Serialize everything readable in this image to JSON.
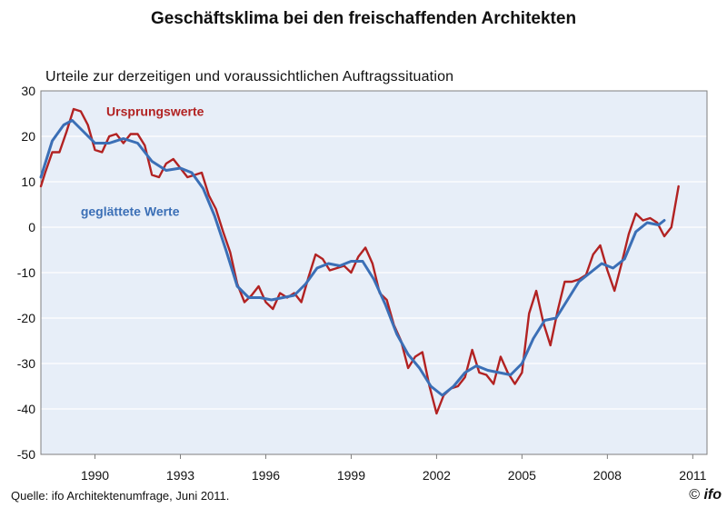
{
  "title": "Geschäftsklima bei den freischaffenden Architekten",
  "subtitle": "Urteile zur derzeitigen und voraussichtlichen Auftragssituation",
  "source": "Quelle: ifo Architektenumfrage, Juni 2011.",
  "logo": {
    "copyright": "©",
    "word": "ifo"
  },
  "colors": {
    "background": "#e7eef8",
    "raw": "#b22222",
    "smoothed": "#3b6fb6",
    "grid": "#ffffff"
  },
  "chart_data": {
    "type": "line",
    "title": "Geschäftsklima bei den freischaffenden Architekten",
    "subtitle": "Urteile zur derzeitigen und voraussichtlichen Auftragssituation",
    "xlim": [
      1988.1,
      2011.5
    ],
    "ylim": [
      -50,
      30
    ],
    "x_ticks": [
      1990,
      1993,
      1996,
      1999,
      2002,
      2005,
      2008,
      2011
    ],
    "x_tick_labels": [
      "1990",
      "1993",
      "1996",
      "1999",
      "2002",
      "2005",
      "2008",
      "2011"
    ],
    "y_ticks": [
      30,
      20,
      10,
      0,
      -10,
      -20,
      -30,
      -40,
      -50
    ],
    "y_tick_labels": [
      "30",
      "20",
      "10",
      "0",
      "-10",
      "-20",
      "-30",
      "-40",
      "-50"
    ],
    "grid": true,
    "annotations": [
      {
        "text": "Ursprungswerte",
        "series": "raw",
        "x": 1990.4,
        "y": 24.5
      },
      {
        "text": "geglättete Werte",
        "series": "smoothed",
        "x": 1989.5,
        "y": 2.5
      }
    ],
    "series": [
      {
        "name": "Ursprungswerte",
        "key": "raw",
        "points": [
          [
            1988.1,
            9
          ],
          [
            1988.25,
            12
          ],
          [
            1988.5,
            16.5
          ],
          [
            1988.75,
            16.5
          ],
          [
            1989.0,
            21
          ],
          [
            1989.25,
            26
          ],
          [
            1989.5,
            25.5
          ],
          [
            1989.75,
            22.5
          ],
          [
            1990.0,
            17
          ],
          [
            1990.25,
            16.5
          ],
          [
            1990.5,
            20
          ],
          [
            1990.75,
            20.5
          ],
          [
            1991.0,
            18.5
          ],
          [
            1991.25,
            20.5
          ],
          [
            1991.5,
            20.5
          ],
          [
            1991.75,
            18
          ],
          [
            1992.0,
            11.5
          ],
          [
            1992.25,
            11
          ],
          [
            1992.5,
            14
          ],
          [
            1992.75,
            15
          ],
          [
            1993.0,
            13
          ],
          [
            1993.25,
            11
          ],
          [
            1993.5,
            11.5
          ],
          [
            1993.75,
            12
          ],
          [
            1994.0,
            7
          ],
          [
            1994.25,
            4
          ],
          [
            1994.5,
            -1
          ],
          [
            1994.75,
            -5.5
          ],
          [
            1995.0,
            -12.5
          ],
          [
            1995.25,
            -16.5
          ],
          [
            1995.5,
            -15
          ],
          [
            1995.75,
            -13
          ],
          [
            1996.0,
            -16.5
          ],
          [
            1996.25,
            -18
          ],
          [
            1996.5,
            -14.5
          ],
          [
            1996.75,
            -15.5
          ],
          [
            1997.0,
            -14.5
          ],
          [
            1997.25,
            -16.5
          ],
          [
            1997.5,
            -11
          ],
          [
            1997.75,
            -6
          ],
          [
            1998.0,
            -7
          ],
          [
            1998.25,
            -9.5
          ],
          [
            1998.5,
            -9
          ],
          [
            1998.75,
            -8.5
          ],
          [
            1999.0,
            -10
          ],
          [
            1999.25,
            -6.5
          ],
          [
            1999.5,
            -4.5
          ],
          [
            1999.75,
            -8
          ],
          [
            2000.0,
            -14.5
          ],
          [
            2000.25,
            -16
          ],
          [
            2000.5,
            -21.5
          ],
          [
            2000.75,
            -25
          ],
          [
            2001.0,
            -31
          ],
          [
            2001.25,
            -28.5
          ],
          [
            2001.5,
            -27.5
          ],
          [
            2001.75,
            -35
          ],
          [
            2002.0,
            -41
          ],
          [
            2002.25,
            -37
          ],
          [
            2002.5,
            -35.5
          ],
          [
            2002.75,
            -35
          ],
          [
            2003.0,
            -33
          ],
          [
            2003.25,
            -27
          ],
          [
            2003.5,
            -32
          ],
          [
            2003.75,
            -32.5
          ],
          [
            2004.0,
            -34.5
          ],
          [
            2004.25,
            -28.5
          ],
          [
            2004.5,
            -32
          ],
          [
            2004.75,
            -34.5
          ],
          [
            2005.0,
            -32
          ],
          [
            2005.25,
            -19
          ],
          [
            2005.5,
            -14
          ],
          [
            2005.75,
            -21
          ],
          [
            2006.0,
            -26
          ],
          [
            2006.25,
            -18.5
          ],
          [
            2006.5,
            -12
          ],
          [
            2006.75,
            -12
          ],
          [
            2007.0,
            -11.5
          ],
          [
            2007.25,
            -10.5
          ],
          [
            2007.5,
            -6
          ],
          [
            2007.75,
            -4
          ],
          [
            2008.0,
            -9.5
          ],
          [
            2008.25,
            -14
          ],
          [
            2008.5,
            -8
          ],
          [
            2008.75,
            -1.5
          ],
          [
            2009.0,
            3
          ],
          [
            2009.25,
            1.5
          ],
          [
            2009.5,
            2
          ],
          [
            2009.75,
            1
          ],
          [
            2010.0,
            -2
          ],
          [
            2010.25,
            0
          ],
          [
            2010.5,
            9
          ]
        ]
      },
      {
        "name": "geglättete Werte",
        "key": "smoothed",
        "points": [
          [
            1988.1,
            11
          ],
          [
            1988.5,
            19
          ],
          [
            1988.9,
            22.5
          ],
          [
            1989.2,
            23.5
          ],
          [
            1989.6,
            21
          ],
          [
            1990.0,
            18.5
          ],
          [
            1990.5,
            18.5
          ],
          [
            1991.0,
            19.5
          ],
          [
            1991.5,
            18.5
          ],
          [
            1992.0,
            14.5
          ],
          [
            1992.5,
            12.5
          ],
          [
            1993.0,
            13
          ],
          [
            1993.4,
            12
          ],
          [
            1993.8,
            8.5
          ],
          [
            1994.2,
            2.5
          ],
          [
            1994.6,
            -5
          ],
          [
            1995.0,
            -13
          ],
          [
            1995.4,
            -15.5
          ],
          [
            1995.8,
            -15.5
          ],
          [
            1996.2,
            -16
          ],
          [
            1996.6,
            -15.5
          ],
          [
            1997.0,
            -15
          ],
          [
            1997.4,
            -12.5
          ],
          [
            1997.8,
            -9
          ],
          [
            1998.2,
            -8
          ],
          [
            1998.6,
            -8.5
          ],
          [
            1999.0,
            -7.5
          ],
          [
            1999.4,
            -7.5
          ],
          [
            1999.8,
            -11.5
          ],
          [
            2000.2,
            -17
          ],
          [
            2000.6,
            -23.5
          ],
          [
            2001.0,
            -28
          ],
          [
            2001.4,
            -31
          ],
          [
            2001.8,
            -35
          ],
          [
            2002.2,
            -37
          ],
          [
            2002.6,
            -35
          ],
          [
            2003.0,
            -32
          ],
          [
            2003.4,
            -30.5
          ],
          [
            2003.8,
            -31.5
          ],
          [
            2004.2,
            -32
          ],
          [
            2004.6,
            -32.5
          ],
          [
            2005.0,
            -30
          ],
          [
            2005.4,
            -24.5
          ],
          [
            2005.8,
            -20.5
          ],
          [
            2006.2,
            -20
          ],
          [
            2006.6,
            -16
          ],
          [
            2007.0,
            -12
          ],
          [
            2007.4,
            -10
          ],
          [
            2007.8,
            -8
          ],
          [
            2008.2,
            -9
          ],
          [
            2008.6,
            -7
          ],
          [
            2009.0,
            -1
          ],
          [
            2009.4,
            1
          ],
          [
            2009.8,
            0.5
          ],
          [
            2010.0,
            1.5
          ]
        ]
      }
    ]
  }
}
